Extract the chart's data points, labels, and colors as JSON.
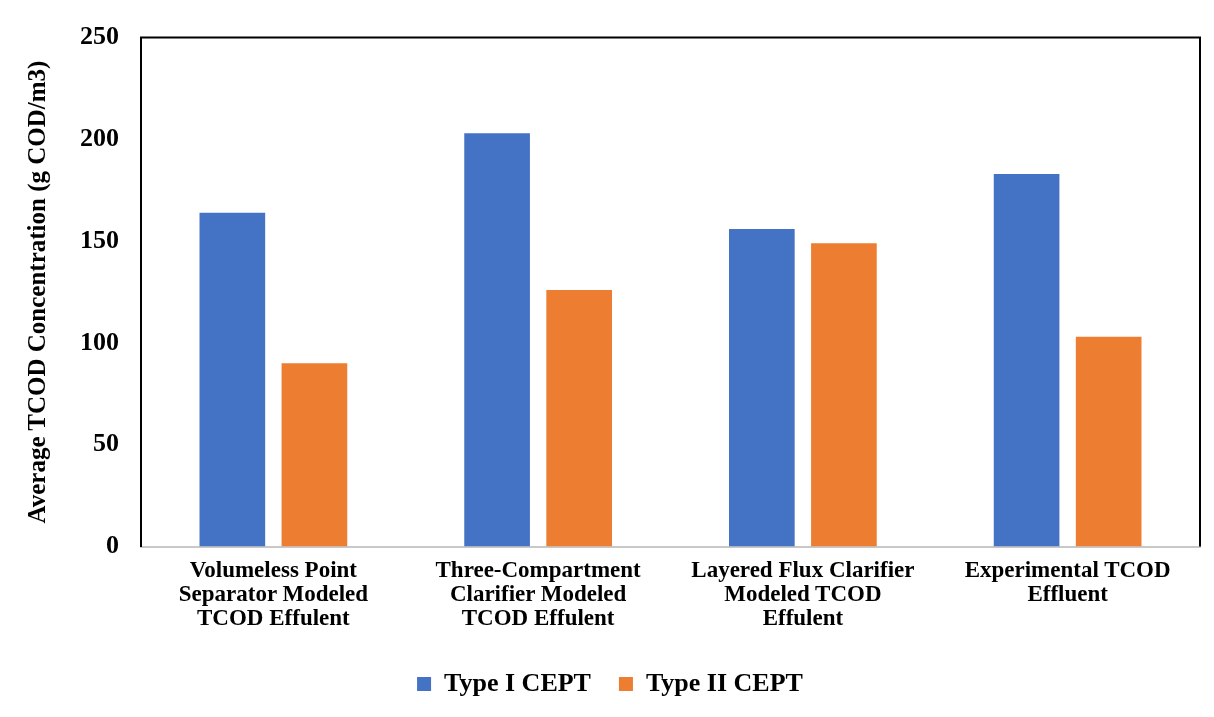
{
  "chart_data": {
    "type": "bar",
    "ylabel": "Average TCOD Concentration (g COD/m3)",
    "categories": [
      "Volumeless Point Separator Modeled TCOD Effulent",
      "Three-Compartment Clarifier Modeled TCOD Effulent",
      "Layered Flux Clarifier Modeled TCOD Effulent",
      "Experimental TCOD Effluent"
    ],
    "series": [
      {
        "name": "Type I CEPT",
        "color": "#4472c4",
        "values": [
          164,
          203,
          156,
          183
        ]
      },
      {
        "name": "Type II CEPT",
        "color": "#ed7d31",
        "values": [
          90,
          126,
          149,
          103
        ]
      }
    ],
    "ylim": [
      0,
      250
    ],
    "yticks": [
      0,
      50,
      100,
      150,
      200,
      250
    ],
    "grid": false,
    "legend": "bottom"
  }
}
